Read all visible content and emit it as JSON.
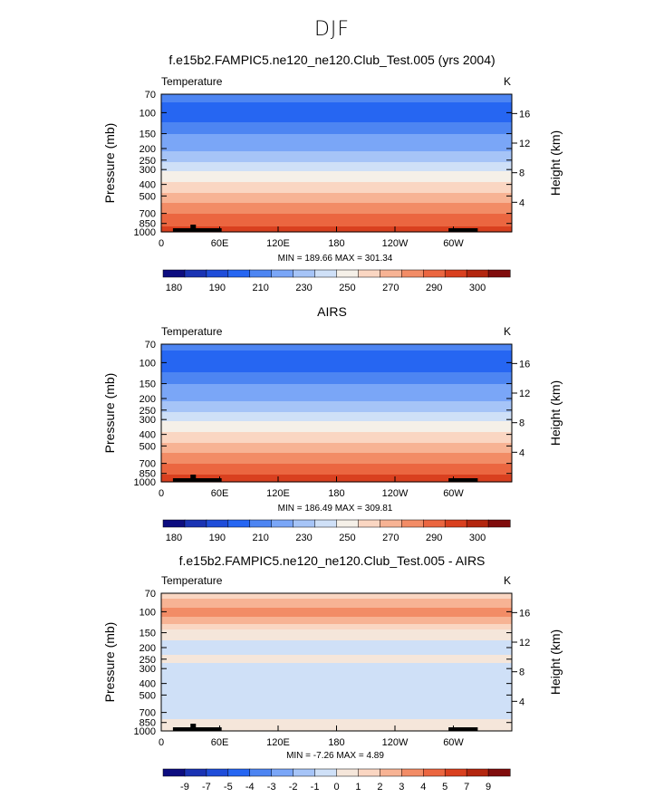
{
  "page_title": "DJF",
  "colors": {
    "temperature_palette": [
      "#0d0d80",
      "#1a33b3",
      "#1f4dd9",
      "#2666f2",
      "#4d85f2",
      "#7aa6f7",
      "#a6c4f7",
      "#cfe0f7",
      "#f5f0e8",
      "#fad6c2",
      "#f7b394",
      "#f28c66",
      "#eb6640",
      "#d9401f",
      "#b3260f",
      "#800d0d"
    ],
    "difference_palette": [
      "#0d0d80",
      "#1a33b3",
      "#1f4dd9",
      "#2666f2",
      "#4d85f2",
      "#7aa6f7",
      "#a6c4f7",
      "#cfe0f7",
      "#f5e6da",
      "#fad6c2",
      "#f7b394",
      "#f28c66",
      "#eb6640",
      "#d9401f",
      "#b3260f",
      "#800d0d"
    ],
    "terrain": "#000000"
  },
  "panels": [
    {
      "title": "f.e15b2.FAMPIC5.ne120_ne120.Club_Test.005 (yrs 2004)",
      "variable": "Temperature",
      "units": "K",
      "ylabel": "Pressure  (mb)",
      "ylabel_right": "Height  (km)",
      "minmax": "MIN = 189.66   MAX = 301.34",
      "colorbar_labels": [
        "180",
        "190",
        "210",
        "230",
        "250",
        "270",
        "290",
        "300"
      ]
    },
    {
      "title": "AIRS",
      "variable": "Temperature",
      "units": "K",
      "ylabel": "Pressure  (mb)",
      "ylabel_right": "Height  (km)",
      "minmax": "MIN = 186.49   MAX = 309.81",
      "colorbar_labels": [
        "180",
        "190",
        "210",
        "230",
        "250",
        "270",
        "290",
        "300"
      ]
    },
    {
      "title": "f.e15b2.FAMPIC5.ne120_ne120.Club_Test.005 - AIRS",
      "variable": "Temperature",
      "units": "K",
      "ylabel": "Pressure  (mb)",
      "ylabel_right": "Height  (km)",
      "minmax": "MIN =   -7.26   MAX =    4.89",
      "colorbar_labels": [
        "-9",
        "-7",
        "-5",
        "-4",
        "-3",
        "-2",
        "-1",
        "0",
        "1",
        "2",
        "3",
        "4",
        "5",
        "7",
        "9"
      ]
    }
  ],
  "chart_data": [
    {
      "type": "heatmap",
      "title": "f.e15b2.FAMPIC5.ne120_ne120.Club_Test.005 (yrs 2004)",
      "x_tick_labels": [
        "0",
        "60E",
        "120E",
        "180",
        "120W",
        "60W"
      ],
      "x_ticks_deg": [
        0,
        60,
        120,
        180,
        240,
        300
      ],
      "xlim": [
        0,
        360
      ],
      "y_tick_labels": [
        "70",
        "100",
        "150",
        "200",
        "250",
        "300",
        "400",
        "500",
        "700",
        "850",
        "1000"
      ],
      "y_ticks_mb": [
        70,
        100,
        150,
        200,
        250,
        300,
        400,
        500,
        700,
        850,
        1000
      ],
      "ylim_mb": [
        1000,
        70
      ],
      "y_scale": "log",
      "right_axis_ticks_km": [
        "16",
        "12",
        "8",
        "4"
      ],
      "colorbar_levels": [
        180,
        185,
        190,
        200,
        210,
        220,
        230,
        240,
        250,
        260,
        270,
        280,
        290,
        295,
        300
      ],
      "profile": {
        "pressure_mb": [
          70,
          90,
          100,
          115,
          130,
          150,
          175,
          200,
          225,
          250,
          275,
          300,
          350,
          400,
          450,
          500,
          600,
          700,
          800,
          850,
          925,
          1000
        ],
        "value": [
          203,
          198,
          196,
          198,
          203,
          210,
          215,
          218,
          222,
          228,
          233,
          238,
          246,
          252,
          258,
          263,
          272,
          280,
          286,
          288,
          291,
          294
        ]
      },
      "min": 189.66,
      "max": 301.34
    },
    {
      "type": "heatmap",
      "title": "AIRS",
      "x_tick_labels": [
        "0",
        "60E",
        "120E",
        "180",
        "120W",
        "60W"
      ],
      "x_ticks_deg": [
        0,
        60,
        120,
        180,
        240,
        300
      ],
      "xlim": [
        0,
        360
      ],
      "y_tick_labels": [
        "70",
        "100",
        "150",
        "200",
        "250",
        "300",
        "400",
        "500",
        "700",
        "850",
        "1000"
      ],
      "y_ticks_mb": [
        70,
        100,
        150,
        200,
        250,
        300,
        400,
        500,
        700,
        850,
        1000
      ],
      "ylim_mb": [
        1000,
        70
      ],
      "y_scale": "log",
      "right_axis_ticks_km": [
        "16",
        "12",
        "8",
        "4"
      ],
      "colorbar_levels": [
        180,
        185,
        190,
        200,
        210,
        220,
        230,
        240,
        250,
        260,
        270,
        280,
        290,
        295,
        300
      ],
      "profile": {
        "pressure_mb": [
          70,
          90,
          100,
          115,
          130,
          150,
          175,
          200,
          225,
          250,
          275,
          300,
          350,
          400,
          450,
          500,
          600,
          700,
          800,
          850,
          925,
          1000
        ],
        "value": [
          203,
          197,
          194,
          198,
          203,
          210,
          215,
          218,
          222,
          228,
          233,
          238,
          246,
          252,
          258,
          263,
          272,
          280,
          286,
          289,
          292,
          295
        ]
      },
      "min": 186.49,
      "max": 309.81
    },
    {
      "type": "heatmap",
      "title": "f.e15b2.FAMPIC5.ne120_ne120.Club_Test.005 - AIRS",
      "x_tick_labels": [
        "0",
        "60E",
        "120E",
        "180",
        "120W",
        "60W"
      ],
      "x_ticks_deg": [
        0,
        60,
        120,
        180,
        240,
        300
      ],
      "xlim": [
        0,
        360
      ],
      "y_tick_labels": [
        "70",
        "100",
        "150",
        "200",
        "250",
        "300",
        "400",
        "500",
        "700",
        "850",
        "1000"
      ],
      "y_ticks_mb": [
        70,
        100,
        150,
        200,
        250,
        300,
        400,
        500,
        700,
        850,
        1000
      ],
      "ylim_mb": [
        1000,
        70
      ],
      "y_scale": "log",
      "right_axis_ticks_km": [
        "16",
        "12",
        "8",
        "4"
      ],
      "colorbar_levels": [
        -9,
        -7,
        -5,
        -4,
        -3,
        -2,
        -1,
        0,
        1,
        2,
        3,
        4,
        5,
        7,
        9
      ],
      "profile": {
        "pressure_mb": [
          70,
          85,
          100,
          120,
          150,
          200,
          250,
          300,
          400,
          500,
          700,
          850,
          1000
        ],
        "value": [
          1.5,
          2.5,
          3.5,
          2.5,
          0.5,
          -0.5,
          0.3,
          -0.5,
          -0.5,
          -0.5,
          -0.5,
          0.3,
          0.3
        ]
      },
      "min": -7.26,
      "max": 4.89
    }
  ]
}
